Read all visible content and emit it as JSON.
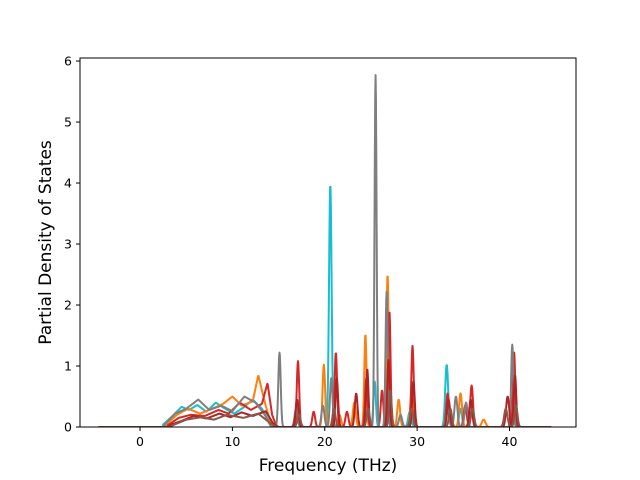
{
  "chart_data": {
    "type": "line",
    "title": "",
    "xlabel": "Frequency (THz)",
    "ylabel": "Partial Density of States",
    "xlim": [
      -6.5,
      47.2
    ],
    "ylim": [
      0,
      6.05
    ],
    "x_ticks": [
      0,
      10,
      20,
      30,
      40
    ],
    "y_ticks": [
      0,
      1,
      2,
      3,
      4,
      5,
      6
    ],
    "grid": false,
    "legend": "none",
    "x_range_sampled": [
      -4.5,
      44.5
    ],
    "series": [
      {
        "color": "#17becf",
        "broad": [
          [
            2.5,
            0.04
          ],
          [
            3.5,
            0.18
          ],
          [
            4.5,
            0.33
          ],
          [
            5.3,
            0.28
          ],
          [
            6.2,
            0.36
          ],
          [
            7.2,
            0.25
          ],
          [
            8.2,
            0.4
          ],
          [
            9.2,
            0.3
          ],
          [
            10.2,
            0.22
          ],
          [
            11.2,
            0.32
          ],
          [
            12.2,
            0.45
          ],
          [
            13.2,
            0.3
          ],
          [
            14.0,
            0.08
          ],
          [
            14.6,
            0.0
          ]
        ],
        "peaks": [
          [
            17.0,
            0.35,
            0.17
          ],
          [
            20.6,
            3.98,
            0.14
          ],
          [
            25.4,
            0.75,
            0.13
          ],
          [
            29.2,
            0.25,
            0.17
          ],
          [
            33.2,
            1.02,
            0.16
          ],
          [
            34.7,
            0.3,
            0.16
          ],
          [
            40.3,
            0.22,
            0.17
          ]
        ]
      },
      {
        "color": "#ff7f0e",
        "broad": [
          [
            2.8,
            0.04
          ],
          [
            4.0,
            0.2
          ],
          [
            5.2,
            0.3
          ],
          [
            6.5,
            0.22
          ],
          [
            7.8,
            0.3
          ],
          [
            9.0,
            0.38
          ],
          [
            10.0,
            0.5
          ],
          [
            11.0,
            0.35
          ],
          [
            12.2,
            0.42
          ],
          [
            12.8,
            0.85
          ],
          [
            13.6,
            0.35
          ],
          [
            14.2,
            0.05
          ],
          [
            14.8,
            0.0
          ]
        ],
        "peaks": [
          [
            16.9,
            0.2,
            0.17
          ],
          [
            19.9,
            1.02,
            0.14
          ],
          [
            21.6,
            0.2,
            0.17
          ],
          [
            23.2,
            0.4,
            0.16
          ],
          [
            24.4,
            1.52,
            0.12
          ],
          [
            26.8,
            2.5,
            0.12
          ],
          [
            28.0,
            0.45,
            0.15
          ],
          [
            29.4,
            0.55,
            0.15
          ],
          [
            34.7,
            0.55,
            0.16
          ],
          [
            37.2,
            0.12,
            0.2
          ],
          [
            40.5,
            0.18,
            0.17
          ]
        ]
      },
      {
        "color": "#d62728",
        "broad": [
          [
            3.0,
            0.03
          ],
          [
            4.2,
            0.15
          ],
          [
            5.5,
            0.2
          ],
          [
            7.0,
            0.18
          ],
          [
            8.5,
            0.28
          ],
          [
            9.6,
            0.22
          ],
          [
            10.8,
            0.4
          ],
          [
            12.0,
            0.28
          ],
          [
            13.2,
            0.38
          ],
          [
            13.8,
            0.72
          ],
          [
            14.3,
            0.2
          ],
          [
            14.8,
            0.0
          ]
        ],
        "peaks": [
          [
            17.1,
            1.08,
            0.13
          ],
          [
            18.8,
            0.25,
            0.15
          ],
          [
            21.2,
            1.22,
            0.13
          ],
          [
            22.4,
            0.25,
            0.16
          ],
          [
            24.5,
            0.8,
            0.14
          ],
          [
            26.2,
            0.6,
            0.14
          ],
          [
            27.0,
            1.9,
            0.12
          ],
          [
            29.5,
            1.33,
            0.13
          ],
          [
            33.3,
            0.55,
            0.15
          ],
          [
            35.2,
            0.35,
            0.16
          ],
          [
            35.9,
            0.68,
            0.15
          ],
          [
            40.5,
            1.22,
            0.12
          ]
        ]
      },
      {
        "color": "#7f7f7f",
        "broad": [
          [
            2.6,
            0.03
          ],
          [
            3.8,
            0.22
          ],
          [
            5.0,
            0.3
          ],
          [
            6.3,
            0.45
          ],
          [
            7.5,
            0.28
          ],
          [
            8.8,
            0.35
          ],
          [
            10.0,
            0.26
          ],
          [
            11.3,
            0.5
          ],
          [
            12.5,
            0.4
          ],
          [
            13.5,
            0.2
          ],
          [
            14.2,
            0.0
          ]
        ],
        "peaks": [
          [
            15.1,
            1.22,
            0.13
          ],
          [
            16.9,
            0.3,
            0.16
          ],
          [
            19.8,
            0.35,
            0.16
          ],
          [
            20.7,
            0.8,
            0.14
          ],
          [
            25.5,
            5.77,
            0.11
          ],
          [
            26.7,
            2.22,
            0.12
          ],
          [
            28.2,
            0.2,
            0.17
          ],
          [
            33.3,
            0.25,
            0.17
          ],
          [
            34.2,
            0.5,
            0.16
          ],
          [
            35.3,
            0.4,
            0.16
          ],
          [
            40.3,
            1.35,
            0.12
          ]
        ]
      },
      {
        "color": "#b22222",
        "broad": [
          [
            3.2,
            0.03
          ],
          [
            4.5,
            0.1
          ],
          [
            5.8,
            0.18
          ],
          [
            7.2,
            0.14
          ],
          [
            8.6,
            0.22
          ],
          [
            9.8,
            0.16
          ],
          [
            11.0,
            0.24
          ],
          [
            12.2,
            0.18
          ],
          [
            13.6,
            0.26
          ],
          [
            14.4,
            0.06
          ],
          [
            15.0,
            0.0
          ]
        ],
        "peaks": [
          [
            17.0,
            0.45,
            0.16
          ],
          [
            21.3,
            0.8,
            0.14
          ],
          [
            23.4,
            0.55,
            0.15
          ],
          [
            24.6,
            0.95,
            0.13
          ],
          [
            26.9,
            1.1,
            0.13
          ],
          [
            29.6,
            0.75,
            0.14
          ],
          [
            33.4,
            0.45,
            0.16
          ],
          [
            35.8,
            0.45,
            0.16
          ],
          [
            39.8,
            0.5,
            0.17
          ],
          [
            40.6,
            0.85,
            0.13
          ]
        ]
      },
      {
        "color": "#8c564b",
        "broad": [
          [
            3.4,
            0.02
          ],
          [
            5.0,
            0.12
          ],
          [
            6.6,
            0.16
          ],
          [
            8.0,
            0.12
          ],
          [
            9.4,
            0.2
          ],
          [
            11.2,
            0.15
          ],
          [
            12.8,
            0.22
          ],
          [
            14.2,
            0.05
          ],
          [
            14.8,
            0.0
          ]
        ],
        "peaks": [
          [
            17.2,
            0.2,
            0.17
          ],
          [
            21.0,
            0.3,
            0.16
          ],
          [
            24.7,
            0.3,
            0.16
          ],
          [
            27.1,
            0.6,
            0.14
          ],
          [
            29.4,
            0.3,
            0.16
          ],
          [
            33.6,
            0.3,
            0.16
          ],
          [
            36.0,
            0.3,
            0.17
          ],
          [
            39.6,
            0.3,
            0.18
          ],
          [
            40.7,
            0.35,
            0.16
          ]
        ]
      }
    ]
  }
}
